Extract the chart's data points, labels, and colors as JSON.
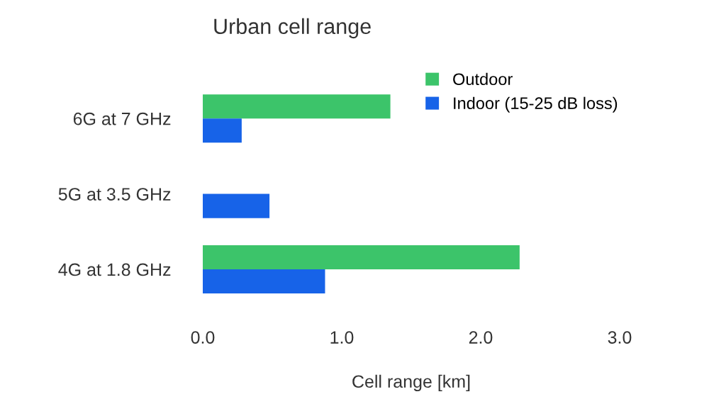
{
  "chart_data": {
    "type": "bar",
    "orientation": "horizontal",
    "title": "Urban cell range",
    "xlabel": "Cell range [km]",
    "categories": [
      "6G at 7 GHz",
      "5G at 3.5 GHz",
      "4G at 1.8 GHz"
    ],
    "series": [
      {
        "name": "Outdoor",
        "color": "#3cc46a",
        "values": [
          1.35,
          null,
          2.28
        ]
      },
      {
        "name": "Indoor (15-25 dB loss)",
        "color": "#1763e8",
        "values": [
          0.28,
          0.48,
          0.88
        ]
      }
    ],
    "xlim": [
      0,
      3
    ],
    "xticks": [
      {
        "value": 0,
        "label": "0.0"
      },
      {
        "value": 1,
        "label": "1.0"
      },
      {
        "value": 2,
        "label": "2.0"
      },
      {
        "value": 3,
        "label": "3.0"
      }
    ],
    "grid": false,
    "legend": "top right"
  }
}
